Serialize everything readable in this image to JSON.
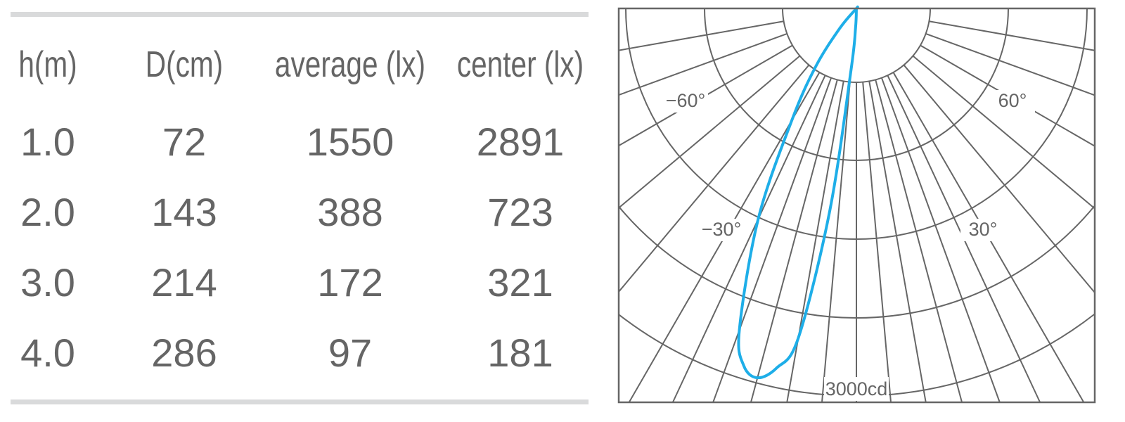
{
  "table": {
    "headers": [
      "h(m)",
      "D(cm)",
      "average (lx)",
      "center (lx)"
    ],
    "rows": [
      [
        "1.0",
        "72",
        "1550",
        "2891"
      ],
      [
        "2.0",
        "143",
        "388",
        "723"
      ],
      [
        "3.0",
        "214",
        "172",
        "321"
      ],
      [
        "4.0",
        "286",
        "97",
        "181"
      ]
    ]
  },
  "chart_data": {
    "type": "polar",
    "title": "",
    "angle_labels": [
      "−60°",
      "60°",
      "−30°",
      "30°"
    ],
    "radial_label": "3000cd",
    "radial_max_cd": 3000,
    "ring_count": 5,
    "grid": true,
    "curve_color": "#1eaee8",
    "grid_color": "#666666",
    "series": [
      {
        "angles_deg": [
          0,
          -2.5,
          -5,
          -7.5,
          -10,
          -12.5,
          -15,
          -17.5,
          -20,
          -25,
          -30,
          -35,
          -40,
          -43
        ],
        "intensity_cd": [
          0,
          150,
          480,
          1580,
          2590,
          2850,
          2960,
          2900,
          2650,
          1800,
          1000,
          550,
          200,
          0
        ]
      }
    ]
  }
}
